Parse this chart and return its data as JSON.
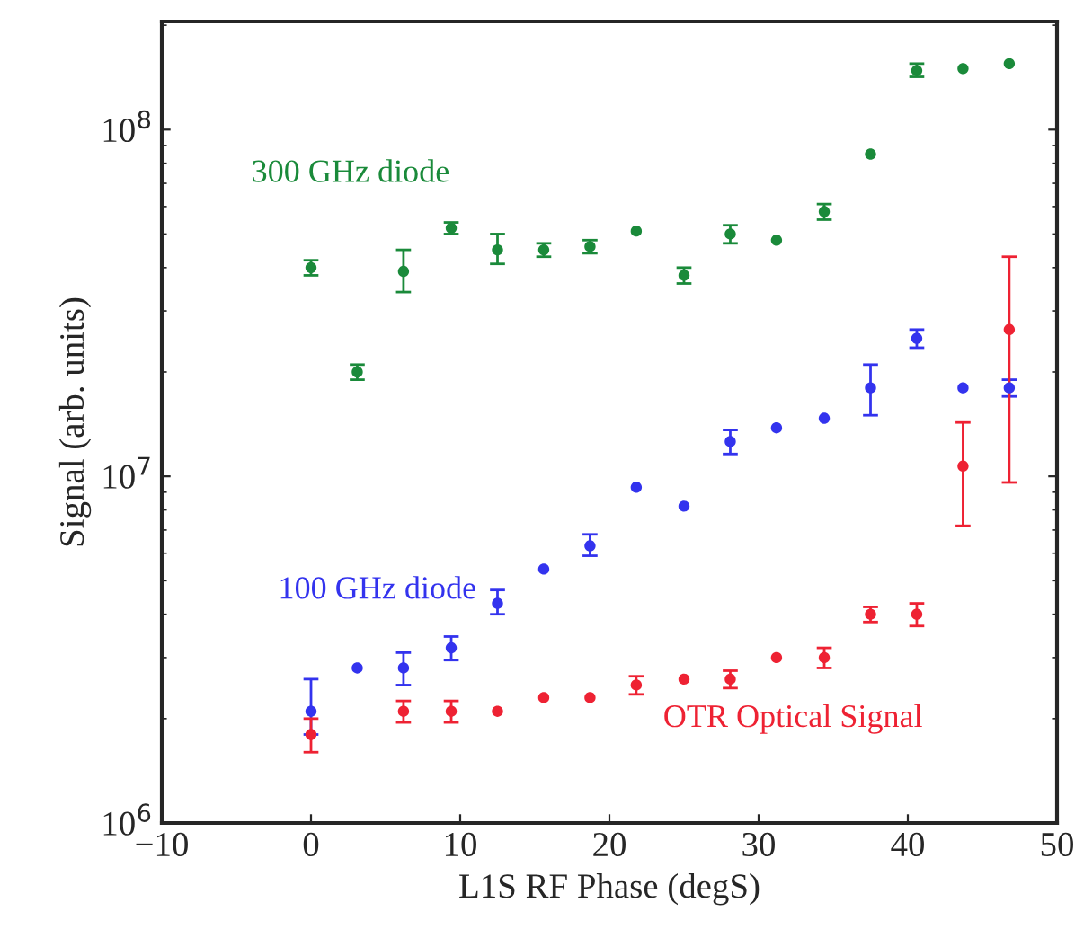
{
  "chart_data": {
    "type": "scatter",
    "xlabel": "L1S RF Phase (degS)",
    "ylabel": "Signal (arb. units)",
    "x": [
      0,
      3.1,
      6.2,
      9.4,
      12.5,
      15.6,
      18.7,
      21.8,
      25,
      28.1,
      31.2,
      34.4,
      37.5,
      40.6,
      43.7,
      46.8
    ],
    "xlim": [
      -10,
      50
    ],
    "xticks": [
      {
        "value": -10,
        "label": "−10"
      },
      0,
      10,
      20,
      30,
      40,
      50
    ],
    "log": "y",
    "ylim": [
      1000000,
      205000000
    ],
    "yticks": [
      {
        "value": 1000000,
        "label": "10$^{6}$"
      },
      {
        "value": 10000000,
        "label": "10$^{7}$"
      },
      {
        "value": 100000000,
        "label": "10$^{8}$"
      }
    ],
    "marker": "circle",
    "grid": false,
    "legend": false,
    "series": [
      {
        "name": "300 GHz diode",
        "color": "#1a8a3a",
        "values": [
          40000000,
          20000000,
          39000000,
          52000000,
          45000000,
          45000000,
          46000000,
          51000000,
          38000000,
          50000000,
          48000000,
          58000000,
          85000000,
          148000000,
          150000000,
          155000000
        ],
        "errors": [
          [
            38000000,
            42000000
          ],
          [
            19000000,
            21000000
          ],
          [
            34000000,
            45000000
          ],
          [
            50000000,
            54000000
          ],
          [
            41000000,
            50000000
          ],
          [
            43000000,
            47000000
          ],
          [
            44000000,
            48000000
          ],
          null,
          [
            36000000,
            40000000
          ],
          [
            47000000,
            53000000
          ],
          null,
          [
            55000000,
            61000000
          ],
          null,
          [
            142000000,
            155000000
          ],
          null,
          null
        ]
      },
      {
        "name": "100 GHz diode",
        "color": "#3333ee",
        "values": [
          2100000,
          2800000,
          2800000,
          3200000,
          4300000,
          5400000,
          6300000,
          9300000,
          8200000,
          12600000,
          13800000,
          14700000,
          18000000,
          25000000,
          18000000,
          18000000
        ],
        "errors": [
          [
            1800000,
            2600000
          ],
          null,
          [
            2500000,
            3100000
          ],
          [
            2950000,
            3450000
          ],
          [
            4000000,
            4700000
          ],
          null,
          [
            5900000,
            6800000
          ],
          null,
          null,
          [
            11600000,
            13600000
          ],
          null,
          null,
          [
            15000000,
            21000000
          ],
          [
            23500000,
            26500000
          ],
          null,
          [
            17000000,
            19000000
          ]
        ]
      },
      {
        "name": "OTR Optical Signal",
        "color": "#ee2233",
        "values": [
          1800000,
          null,
          2100000,
          2100000,
          2100000,
          2300000,
          2300000,
          2500000,
          2600000,
          2600000,
          3000000,
          3000000,
          4000000,
          4000000,
          10700000,
          26500000
        ],
        "errors": [
          [
            1600000,
            2000000
          ],
          null,
          [
            1950000,
            2250000
          ],
          [
            1950000,
            2250000
          ],
          null,
          null,
          null,
          [
            2350000,
            2650000
          ],
          null,
          [
            2450000,
            2750000
          ],
          null,
          [
            2800000,
            3200000
          ],
          [
            3800000,
            4200000
          ],
          [
            3700000,
            4300000
          ],
          [
            7200000,
            14300000
          ],
          [
            9600000,
            43000000
          ]
        ]
      }
    ]
  }
}
